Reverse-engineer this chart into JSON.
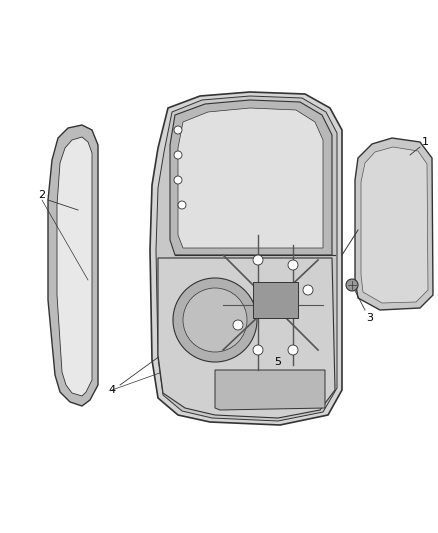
{
  "bg_color": "#ffffff",
  "line_color": "#555555",
  "dark_line": "#333333",
  "label_color": "#000000",
  "figsize": [
    4.38,
    5.33
  ],
  "dpi": 100,
  "door_fill": "#e8e8e8",
  "door_inner_fill": "#d8d8d8",
  "window_fill": "#cccccc",
  "seal_fill": "#c8c8c8",
  "glass_fill": "#d4d4d4",
  "mechanism_color": "#666666"
}
